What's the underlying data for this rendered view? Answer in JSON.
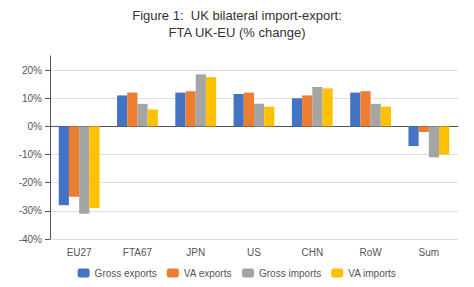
{
  "chart_data": {
    "type": "bar",
    "title": "Figure 1:  UK bilateral import-export:",
    "subtitle": "FTA UK-EU (% change)",
    "categories": [
      "EU27",
      "FTA67",
      "JPN",
      "US",
      "CHN",
      "RoW",
      "Sum"
    ],
    "series": [
      {
        "name": "Gross exports",
        "color": "#4472C4",
        "values": [
          -28,
          11,
          12,
          11.5,
          10,
          12,
          -7
        ]
      },
      {
        "name": "VA exports",
        "color": "#ED7D31",
        "values": [
          -25,
          12,
          12.5,
          12,
          11,
          12.5,
          -2
        ]
      },
      {
        "name": "Gross imports",
        "color": "#A5A5A5",
        "values": [
          -31,
          8,
          18.5,
          8,
          14,
          8,
          -11
        ]
      },
      {
        "name": "VA imports",
        "color": "#FFC000",
        "values": [
          -29,
          6,
          17.5,
          7,
          13.5,
          7,
          -10
        ]
      }
    ],
    "ylim": [
      -40,
      25
    ],
    "yticks": [
      {
        "value": -40,
        "label": "-40%"
      },
      {
        "value": -30,
        "label": "-30%"
      },
      {
        "value": -20,
        "label": "-20%"
      },
      {
        "value": -10,
        "label": "-10%"
      },
      {
        "value": 0,
        "label": "0%"
      },
      {
        "value": 10,
        "label": "10%"
      },
      {
        "value": 20,
        "label": "20%"
      }
    ],
    "grid": true,
    "legend": "bottom"
  }
}
